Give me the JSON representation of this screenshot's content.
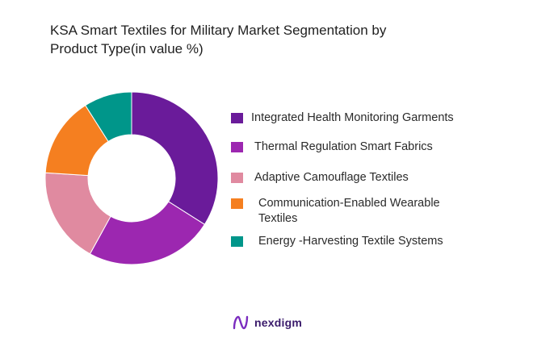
{
  "title": " KSA Smart Textiles for Military Market  Segmentation by\nProduct Type(in value %)",
  "brand": {
    "name": "nexdigm",
    "color": "#3a1a6b"
  },
  "chart_data": {
    "type": "pie",
    "donut": true,
    "title": " KSA Smart Textiles for Military Market  Segmentation by Product Type(in value %)",
    "legend_position": "right",
    "slices": [
      {
        "label": "Integrated Health Monitoring Garments",
        "value": 34,
        "color": "#6a1b9a"
      },
      {
        "label": "Thermal Regulation Smart Fabrics",
        "value": 24,
        "color": "#9c27b0"
      },
      {
        "label": "Adaptive Camouflage Textiles",
        "value": 18,
        "color": "#e08aa0"
      },
      {
        "label": "Communication-Enabled Wearable Textiles",
        "value": 15,
        "color": "#f57f20"
      },
      {
        "label": "Energy -Harvesting Textile Systems",
        "value": 9,
        "color": "#00968a"
      }
    ]
  }
}
